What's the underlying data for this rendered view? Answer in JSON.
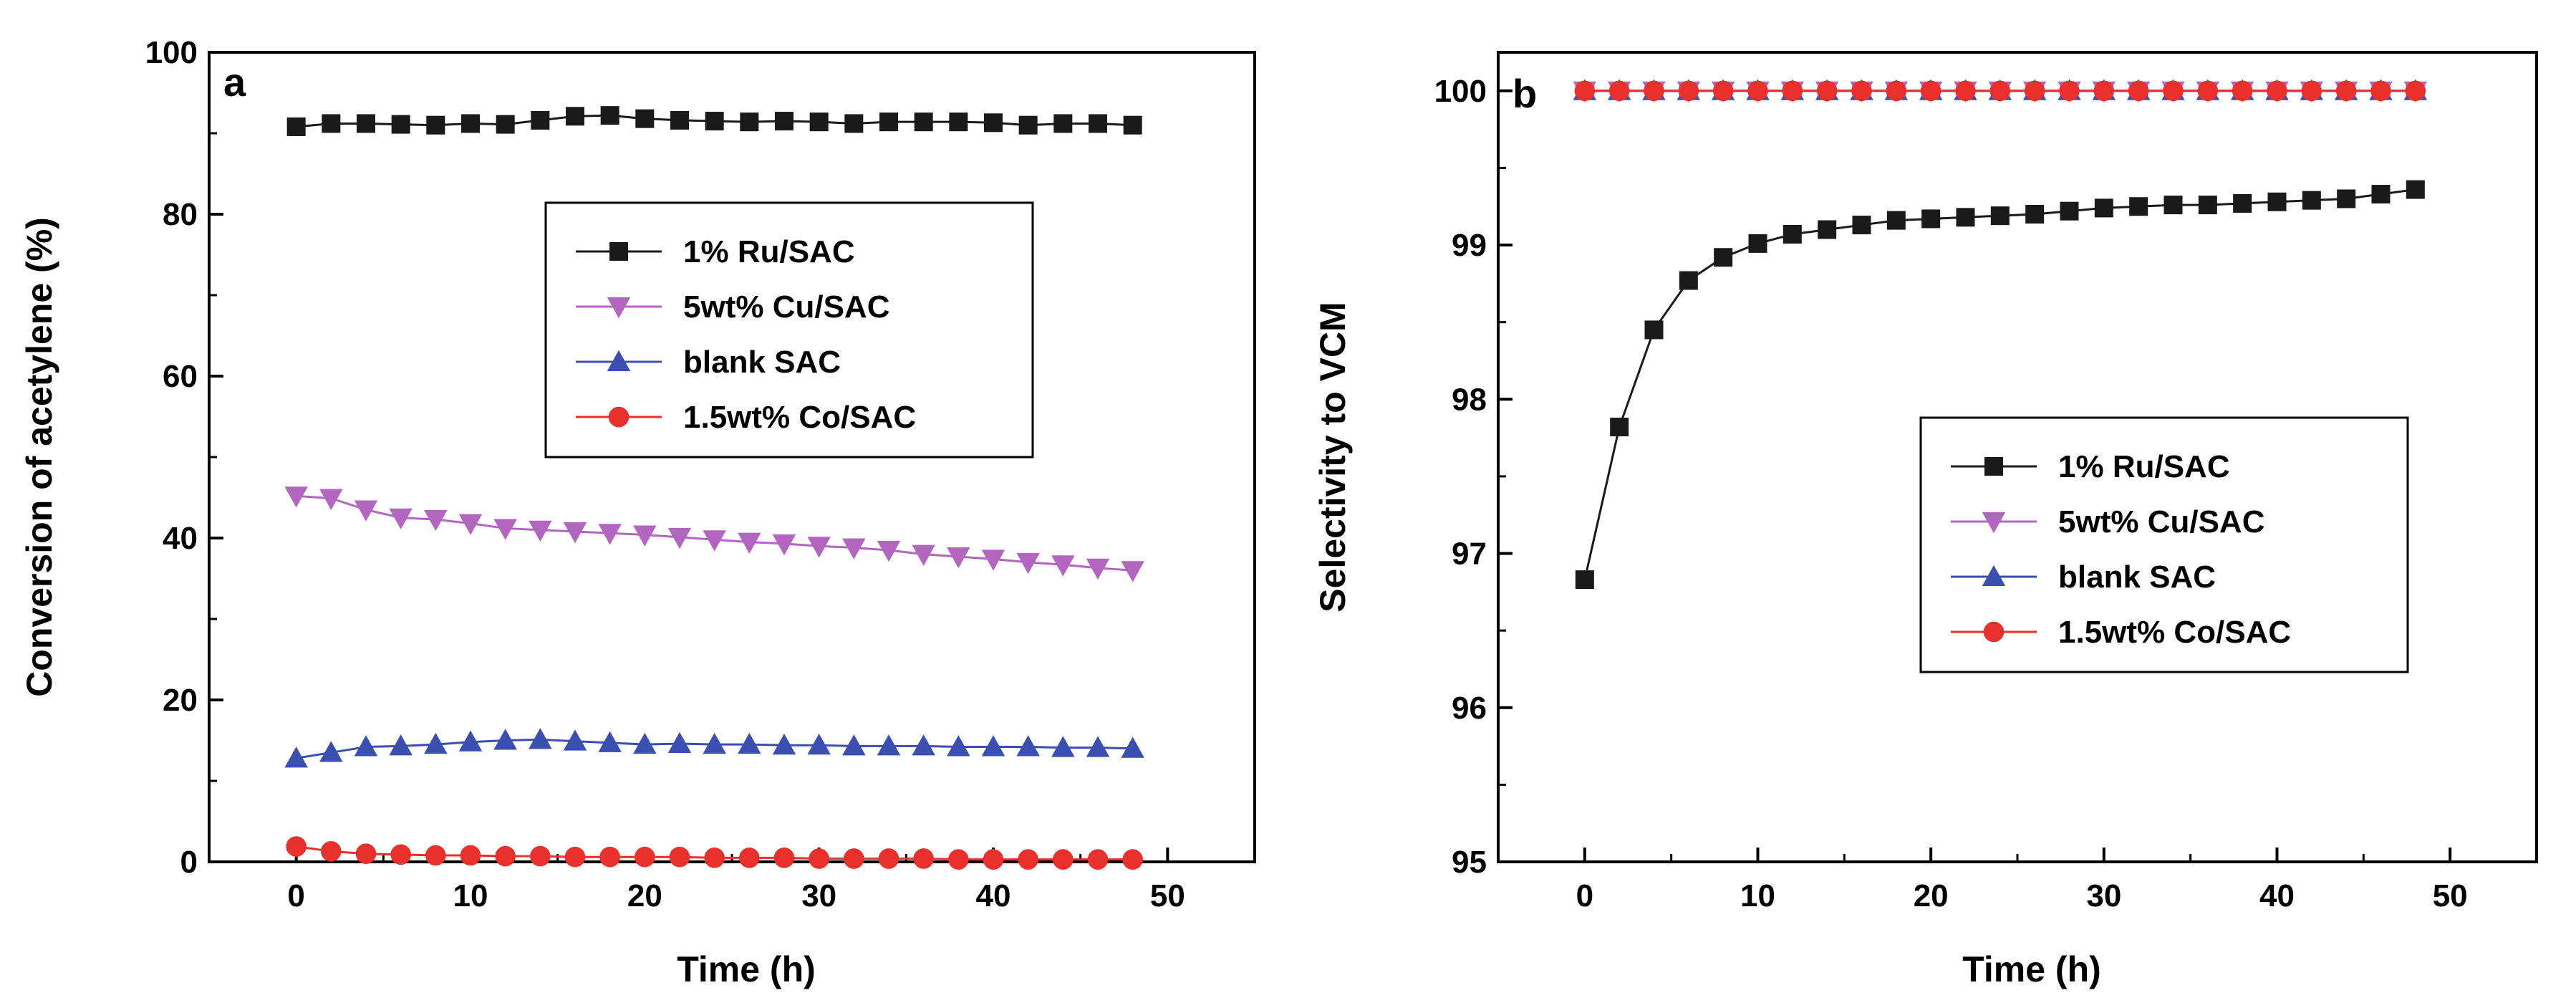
{
  "colors": {
    "ru": "#1a1a1a",
    "cu": "#b266c0",
    "blank": "#3a4fb0",
    "co": "#e8312c"
  },
  "chart_data": [
    {
      "type": "line",
      "panel": "a",
      "xlabel": "Time (h)",
      "ylabel": "Conversion of acetylene (%)",
      "xlim": [
        -5,
        55
      ],
      "ylim": [
        0,
        100
      ],
      "xticks": [
        0,
        10,
        20,
        30,
        40,
        50
      ],
      "yticks": [
        0,
        20,
        40,
        60,
        80,
        100
      ],
      "legend_position": "center",
      "x": [
        0,
        2,
        4,
        6,
        8,
        10,
        12,
        14,
        16,
        18,
        20,
        22,
        24,
        26,
        28,
        30,
        32,
        34,
        36,
        38,
        40,
        42,
        44,
        46,
        48
      ],
      "series": [
        {
          "name": "1% Ru/SAC",
          "marker": "square",
          "color_key": "ru",
          "values": [
            90.8,
            91.2,
            91.2,
            91.1,
            91.0,
            91.2,
            91.1,
            91.6,
            92.1,
            92.2,
            91.8,
            91.6,
            91.5,
            91.4,
            91.5,
            91.4,
            91.2,
            91.4,
            91.4,
            91.4,
            91.3,
            91.0,
            91.2,
            91.2,
            91.0
          ]
        },
        {
          "name": "5wt% Cu/SAC",
          "marker": "triangle-down",
          "color_key": "cu",
          "values": [
            45.2,
            44.9,
            43.5,
            42.5,
            42.3,
            41.8,
            41.2,
            41.0,
            40.8,
            40.6,
            40.4,
            40.1,
            39.8,
            39.5,
            39.3,
            39.0,
            38.8,
            38.5,
            38.0,
            37.7,
            37.4,
            37.0,
            36.7,
            36.3,
            36.0
          ]
        },
        {
          "name": "blank SAC",
          "marker": "triangle-up",
          "color_key": "blank",
          "values": [
            12.8,
            13.5,
            14.2,
            14.3,
            14.5,
            14.8,
            15.0,
            15.1,
            14.9,
            14.7,
            14.5,
            14.6,
            14.5,
            14.5,
            14.4,
            14.4,
            14.3,
            14.3,
            14.3,
            14.2,
            14.2,
            14.2,
            14.1,
            14.1,
            14.0
          ]
        },
        {
          "name": "1.5wt% Co/SAC",
          "marker": "circle",
          "color_key": "co",
          "values": [
            1.9,
            1.3,
            1.0,
            0.9,
            0.8,
            0.8,
            0.7,
            0.7,
            0.6,
            0.6,
            0.6,
            0.6,
            0.5,
            0.5,
            0.5,
            0.4,
            0.4,
            0.4,
            0.4,
            0.3,
            0.3,
            0.3,
            0.3,
            0.3,
            0.3
          ]
        }
      ]
    },
    {
      "type": "line",
      "panel": "b",
      "xlabel": "Time (h)",
      "ylabel": "Selectivity to VCM",
      "xlim": [
        -5,
        55
      ],
      "ylim": [
        95,
        100.25
      ],
      "xticks": [
        0,
        10,
        20,
        30,
        40,
        50
      ],
      "yticks": [
        95,
        96,
        97,
        98,
        99,
        100
      ],
      "legend_position": "center-right",
      "x": [
        0,
        2,
        4,
        6,
        8,
        10,
        12,
        14,
        16,
        18,
        20,
        22,
        24,
        26,
        28,
        30,
        32,
        34,
        36,
        38,
        40,
        42,
        44,
        46,
        48
      ],
      "series": [
        {
          "name": "1% Ru/SAC",
          "marker": "square",
          "color_key": "ru",
          "values": [
            96.83,
            97.82,
            98.45,
            98.77,
            98.92,
            99.01,
            99.07,
            99.1,
            99.13,
            99.16,
            99.17,
            99.18,
            99.19,
            99.2,
            99.22,
            99.24,
            99.25,
            99.26,
            99.26,
            99.27,
            99.28,
            99.29,
            99.3,
            99.33,
            99.36
          ]
        },
        {
          "name": "5wt% Cu/SAC",
          "marker": "triangle-down",
          "color_key": "cu",
          "values": [
            100,
            100,
            100,
            100,
            100,
            100,
            100,
            100,
            100,
            100,
            100,
            100,
            100,
            100,
            100,
            100,
            100,
            100,
            100,
            100,
            100,
            100,
            100,
            100,
            100
          ]
        },
        {
          "name": "blank SAC",
          "marker": "triangle-up",
          "color_key": "blank",
          "values": [
            100,
            100,
            100,
            100,
            100,
            100,
            100,
            100,
            100,
            100,
            100,
            100,
            100,
            100,
            100,
            100,
            100,
            100,
            100,
            100,
            100,
            100,
            100,
            100,
            100
          ]
        },
        {
          "name": "1.5wt% Co/SAC",
          "marker": "circle",
          "color_key": "co",
          "values": [
            100,
            100,
            100,
            100,
            100,
            100,
            100,
            100,
            100,
            100,
            100,
            100,
            100,
            100,
            100,
            100,
            100,
            100,
            100,
            100,
            100,
            100,
            100,
            100,
            100
          ]
        }
      ]
    }
  ]
}
